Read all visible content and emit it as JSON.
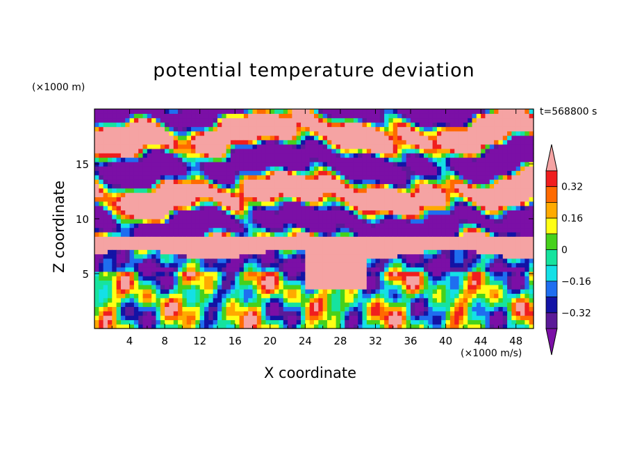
{
  "chart_data": {
    "type": "heatmap",
    "title": "potential temperature deviation",
    "xlabel": "X coordinate",
    "ylabel": "Z coordinate",
    "x_unit_label": "(×1000 m/s)",
    "y_unit_label": "(×1000 m)",
    "time_label": "t=568800 s",
    "xlim": [
      0,
      50
    ],
    "ylim": [
      0,
      20
    ],
    "x_ticks": [
      "4",
      "8",
      "12",
      "16",
      "20",
      "24",
      "28",
      "32",
      "36",
      "40",
      "44",
      "48"
    ],
    "y_ticks": [
      "5",
      "10",
      "15"
    ],
    "colorbar": {
      "tick_labels": [
        "0.32",
        "0.16",
        "0",
        "−0.16",
        "−0.32"
      ],
      "tick_values": [
        0.32,
        0.16,
        0,
        -0.16,
        -0.32
      ],
      "levels": [
        -0.4,
        -0.32,
        -0.24,
        -0.16,
        -0.08,
        0,
        0.08,
        0.16,
        0.24,
        0.32,
        0.4
      ],
      "colors": [
        "#7b0fa6",
        "#5b1a98",
        "#1313a5",
        "#1f6ef0",
        "#14e0e6",
        "#16e39e",
        "#46d11b",
        "#ffff14",
        "#ffaa00",
        "#ff6a00",
        "#f01e1e",
        "#f5a3a3"
      ],
      "extend": "both"
    },
    "field_description": "upper layer (z ~ 7–20) mostly saturated pink (above 0.4) and purple (below -0.4) bands; lower layer (z < 7) turbulent eddies with values between -0.4 and 0.4"
  }
}
